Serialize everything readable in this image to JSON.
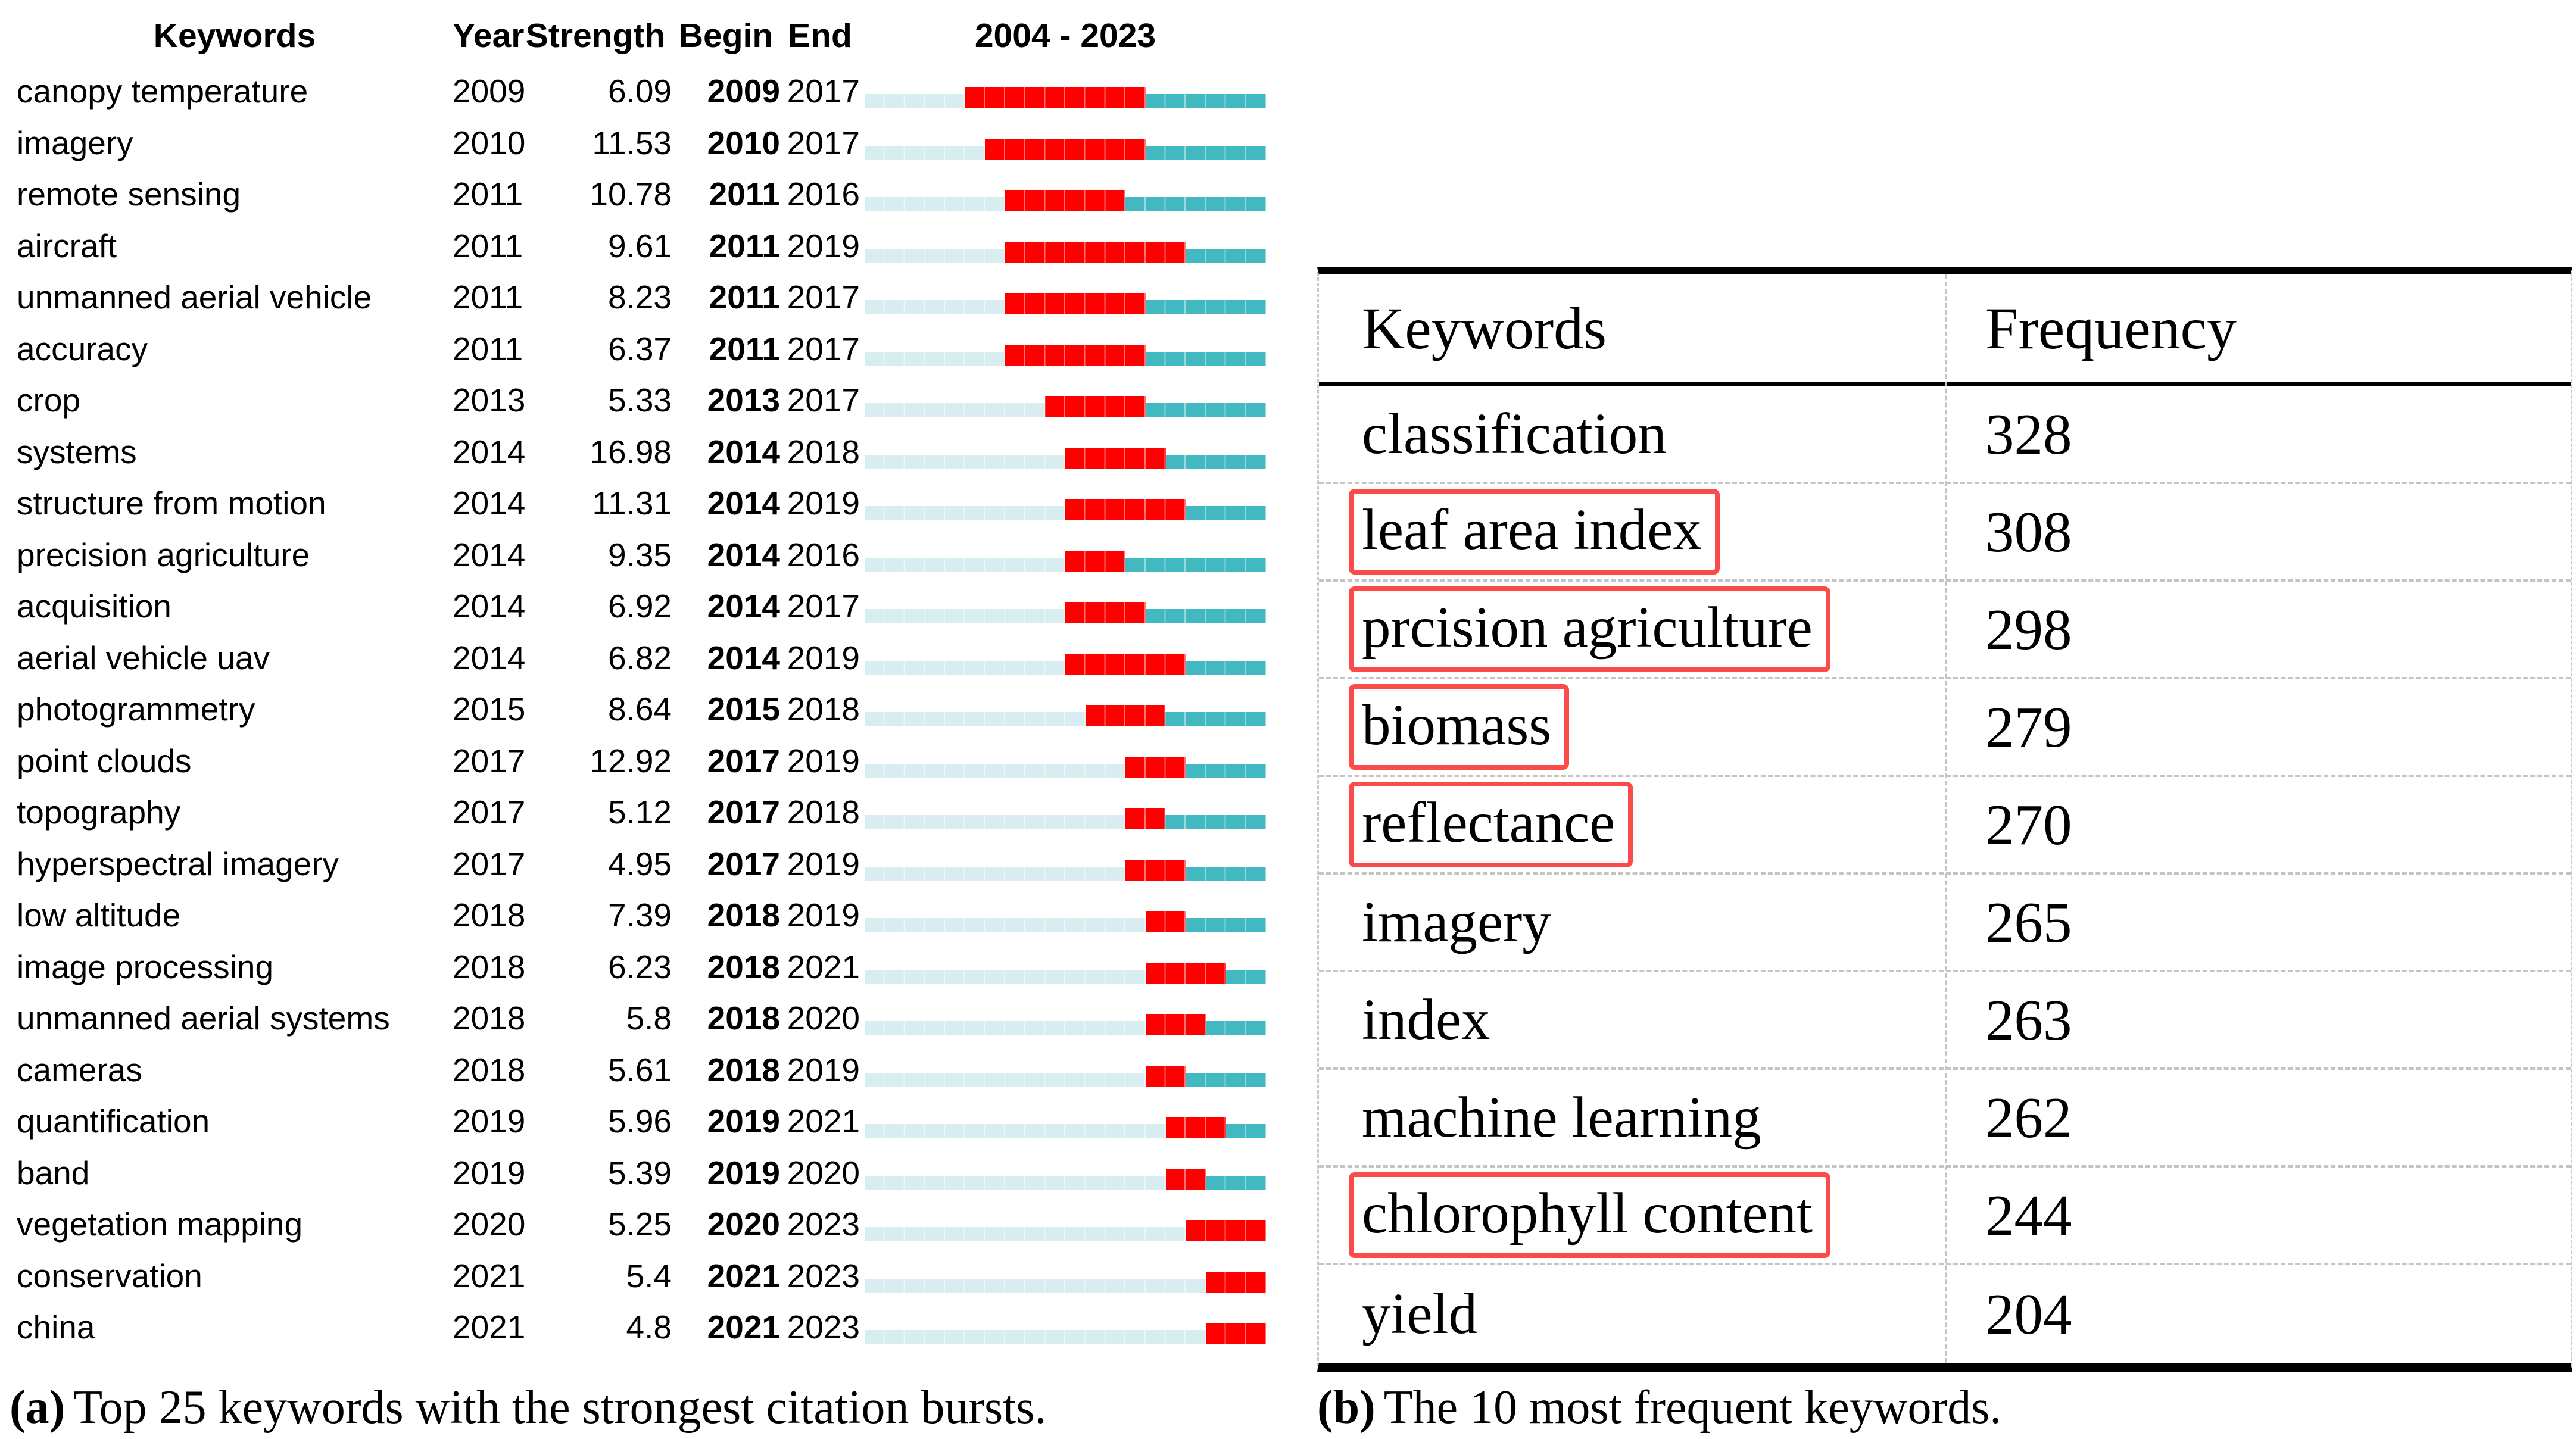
{
  "panel_a": {
    "headers": {
      "keyword": "Keywords",
      "year": "Year",
      "strength": "Strength",
      "begin": "Begin",
      "end": "End",
      "timeline": "2004 - 2023"
    },
    "timeline": {
      "start_year": 2004,
      "end_year": 2023
    },
    "colors": {
      "pre": "#d8edf0",
      "burst": "#fe0000",
      "post": "#42b8c1"
    },
    "rows": [
      {
        "keyword": "canopy temperature",
        "year": 2009,
        "strength": "6.09",
        "begin": 2009,
        "end": 2017
      },
      {
        "keyword": "imagery",
        "year": 2010,
        "strength": "11.53",
        "begin": 2010,
        "end": 2017
      },
      {
        "keyword": "remote sensing",
        "year": 2011,
        "strength": "10.78",
        "begin": 2011,
        "end": 2016
      },
      {
        "keyword": "aircraft",
        "year": 2011,
        "strength": "9.61",
        "begin": 2011,
        "end": 2019
      },
      {
        "keyword": "unmanned aerial vehicle",
        "year": 2011,
        "strength": "8.23",
        "begin": 2011,
        "end": 2017
      },
      {
        "keyword": "accuracy",
        "year": 2011,
        "strength": "6.37",
        "begin": 2011,
        "end": 2017
      },
      {
        "keyword": "crop",
        "year": 2013,
        "strength": "5.33",
        "begin": 2013,
        "end": 2017
      },
      {
        "keyword": "systems",
        "year": 2014,
        "strength": "16.98",
        "begin": 2014,
        "end": 2018
      },
      {
        "keyword": "structure from motion",
        "year": 2014,
        "strength": "11.31",
        "begin": 2014,
        "end": 2019
      },
      {
        "keyword": "precision agriculture",
        "year": 2014,
        "strength": "9.35",
        "begin": 2014,
        "end": 2016
      },
      {
        "keyword": "acquisition",
        "year": 2014,
        "strength": "6.92",
        "begin": 2014,
        "end": 2017
      },
      {
        "keyword": "aerial vehicle uav",
        "year": 2014,
        "strength": "6.82",
        "begin": 2014,
        "end": 2019
      },
      {
        "keyword": "photogrammetry",
        "year": 2015,
        "strength": "8.64",
        "begin": 2015,
        "end": 2018
      },
      {
        "keyword": "point clouds",
        "year": 2017,
        "strength": "12.92",
        "begin": 2017,
        "end": 2019
      },
      {
        "keyword": "topography",
        "year": 2017,
        "strength": "5.12",
        "begin": 2017,
        "end": 2018
      },
      {
        "keyword": "hyperspectral imagery",
        "year": 2017,
        "strength": "4.95",
        "begin": 2017,
        "end": 2019
      },
      {
        "keyword": "low altitude",
        "year": 2018,
        "strength": "7.39",
        "begin": 2018,
        "end": 2019
      },
      {
        "keyword": "image processing",
        "year": 2018,
        "strength": "6.23",
        "begin": 2018,
        "end": 2021
      },
      {
        "keyword": "unmanned aerial systems",
        "year": 2018,
        "strength": "5.8",
        "begin": 2018,
        "end": 2020
      },
      {
        "keyword": "cameras",
        "year": 2018,
        "strength": "5.61",
        "begin": 2018,
        "end": 2019
      },
      {
        "keyword": "quantification",
        "year": 2019,
        "strength": "5.96",
        "begin": 2019,
        "end": 2021
      },
      {
        "keyword": "band",
        "year": 2019,
        "strength": "5.39",
        "begin": 2019,
        "end": 2020
      },
      {
        "keyword": "vegetation mapping",
        "year": 2020,
        "strength": "5.25",
        "begin": 2020,
        "end": 2023
      },
      {
        "keyword": "conservation",
        "year": 2021,
        "strength": "5.4",
        "begin": 2021,
        "end": 2023
      },
      {
        "keyword": "china",
        "year": 2021,
        "strength": "4.8",
        "begin": 2021,
        "end": 2023
      }
    ],
    "caption_label": "(a)",
    "caption_text": "Top 25 keywords with the strongest citation bursts."
  },
  "panel_b": {
    "headers": {
      "keyword": "Keywords",
      "frequency": "Frequency"
    },
    "box_color": "#fb4b4b",
    "rows": [
      {
        "keyword": "classification",
        "frequency": 328,
        "boxed": false
      },
      {
        "keyword": "leaf area index",
        "frequency": 308,
        "boxed": true
      },
      {
        "keyword": "prcision agriculture",
        "frequency": 298,
        "boxed": true
      },
      {
        "keyword": "biomass",
        "frequency": 279,
        "boxed": true
      },
      {
        "keyword": "reflectance",
        "frequency": 270,
        "boxed": true
      },
      {
        "keyword": "imagery",
        "frequency": 265,
        "boxed": false
      },
      {
        "keyword": "index",
        "frequency": 263,
        "boxed": false
      },
      {
        "keyword": "machine learning",
        "frequency": 262,
        "boxed": false
      },
      {
        "keyword": "chlorophyll content",
        "frequency": 244,
        "boxed": true
      },
      {
        "keyword": "yield",
        "frequency": 204,
        "boxed": false
      }
    ],
    "caption_label": "(b)",
    "caption_text": "The 10 most frequent keywords."
  },
  "chart_data": [
    {
      "type": "table",
      "title": "Top 25 keywords with the strongest citation bursts",
      "columns": [
        "Keywords",
        "Year",
        "Strength",
        "Begin",
        "End",
        "2004 - 2023"
      ],
      "timeline_range": [
        2004,
        2023
      ],
      "rows": [
        [
          "canopy temperature",
          2009,
          6.09,
          2009,
          2017
        ],
        [
          "imagery",
          2010,
          11.53,
          2010,
          2017
        ],
        [
          "remote sensing",
          2011,
          10.78,
          2011,
          2016
        ],
        [
          "aircraft",
          2011,
          9.61,
          2011,
          2019
        ],
        [
          "unmanned aerial vehicle",
          2011,
          8.23,
          2011,
          2017
        ],
        [
          "accuracy",
          2011,
          6.37,
          2011,
          2017
        ],
        [
          "crop",
          2013,
          5.33,
          2013,
          2017
        ],
        [
          "systems",
          2014,
          16.98,
          2014,
          2018
        ],
        [
          "structure from motion",
          2014,
          11.31,
          2014,
          2019
        ],
        [
          "precision agriculture",
          2014,
          9.35,
          2014,
          2016
        ],
        [
          "acquisition",
          2014,
          6.92,
          2014,
          2017
        ],
        [
          "aerial vehicle uav",
          2014,
          6.82,
          2014,
          2019
        ],
        [
          "photogrammetry",
          2015,
          8.64,
          2015,
          2018
        ],
        [
          "point clouds",
          2017,
          12.92,
          2017,
          2019
        ],
        [
          "topography",
          2017,
          5.12,
          2017,
          2018
        ],
        [
          "hyperspectral imagery",
          2017,
          4.95,
          2017,
          2019
        ],
        [
          "low altitude",
          2018,
          7.39,
          2018,
          2019
        ],
        [
          "image processing",
          2018,
          6.23,
          2018,
          2021
        ],
        [
          "unmanned aerial systems",
          2018,
          5.8,
          2018,
          2020
        ],
        [
          "cameras",
          2018,
          5.61,
          2018,
          2019
        ],
        [
          "quantification",
          2019,
          5.96,
          2019,
          2021
        ],
        [
          "band",
          2019,
          5.39,
          2019,
          2020
        ],
        [
          "vegetation mapping",
          2020,
          5.25,
          2020,
          2023
        ],
        [
          "conservation",
          2021,
          5.4,
          2021,
          2023
        ],
        [
          "china",
          2021,
          4.8,
          2021,
          2023
        ]
      ]
    },
    {
      "type": "table",
      "title": "The 10 most frequent keywords",
      "columns": [
        "Keywords",
        "Frequency"
      ],
      "rows": [
        [
          "classification",
          328
        ],
        [
          "leaf area index",
          308
        ],
        [
          "prcision agriculture",
          298
        ],
        [
          "biomass",
          279
        ],
        [
          "reflectance",
          270
        ],
        [
          "imagery",
          265
        ],
        [
          "index",
          263
        ],
        [
          "machine learning",
          262
        ],
        [
          "chlorophyll content",
          244
        ],
        [
          "yield",
          204
        ]
      ]
    }
  ]
}
